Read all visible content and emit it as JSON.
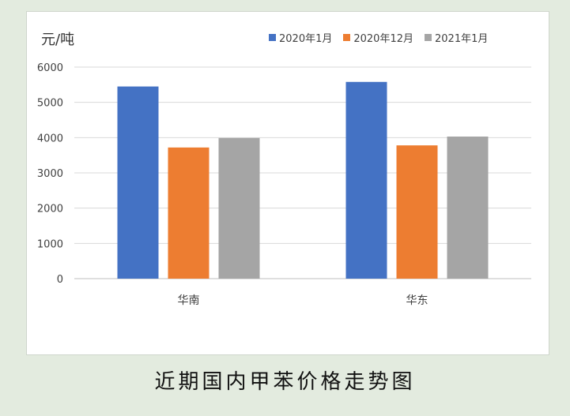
{
  "caption": "近期国内甲苯价格走势图",
  "chart_data": {
    "type": "bar",
    "ylabel": "元/吨",
    "ylim": [
      0,
      6000
    ],
    "yticks": [
      0,
      1000,
      2000,
      3000,
      4000,
      5000,
      6000
    ],
    "categories": [
      "华南",
      "华东"
    ],
    "series": [
      {
        "name": "2020年1月",
        "color": "#4472c4",
        "values": [
          5450,
          5580
        ]
      },
      {
        "name": "2020年12月",
        "color": "#ed7d31",
        "values": [
          3720,
          3780
        ]
      },
      {
        "name": "2021年1月",
        "color": "#a5a5a5",
        "values": [
          3990,
          4030
        ]
      }
    ],
    "legend_position": "top-right",
    "grid": true
  }
}
